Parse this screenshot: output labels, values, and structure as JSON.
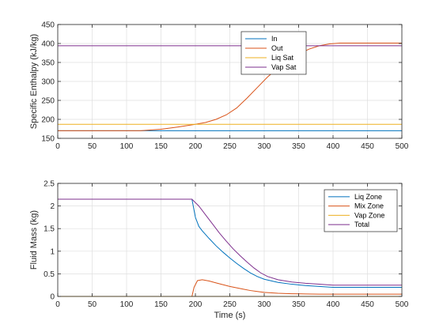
{
  "chart_data": [
    {
      "type": "line",
      "title": "",
      "xlabel": "",
      "ylabel": "Specific Enthalpy (kJ/kg)",
      "xlim": [
        0,
        500
      ],
      "ylim": [
        150,
        450
      ],
      "xticks": [
        0,
        50,
        100,
        150,
        200,
        250,
        300,
        350,
        400,
        450,
        500
      ],
      "yticks": [
        150,
        200,
        250,
        300,
        350,
        400,
        450
      ],
      "grid": true,
      "legend_position": "top-right",
      "series": [
        {
          "name": "In",
          "color": "#0072BD",
          "x": [
            0,
            500
          ],
          "y": [
            170,
            170
          ]
        },
        {
          "name": "Out",
          "color": "#D95319",
          "x": [
            0,
            120,
            150,
            175,
            200,
            215,
            230,
            245,
            260,
            275,
            290,
            305,
            320,
            335,
            350,
            365,
            380,
            395,
            410,
            430,
            500
          ],
          "y": [
            170,
            170,
            174,
            180,
            187,
            192,
            200,
            212,
            230,
            256,
            284,
            312,
            335,
            355,
            372,
            385,
            394,
            399,
            401,
            401,
            401
          ]
        },
        {
          "name": "Liq Sat",
          "color": "#EDB120",
          "x": [
            0,
            500
          ],
          "y": [
            187,
            187
          ]
        },
        {
          "name": "Vap Sat",
          "color": "#7E2F8E",
          "x": [
            0,
            500
          ],
          "y": [
            394,
            394
          ]
        }
      ]
    },
    {
      "type": "line",
      "title": "",
      "xlabel": "Time (s)",
      "ylabel": "Fluid Mass (kg)",
      "xlim": [
        0,
        500
      ],
      "ylim": [
        0,
        2.5
      ],
      "xticks": [
        0,
        50,
        100,
        150,
        200,
        250,
        300,
        350,
        400,
        450,
        500
      ],
      "yticks": [
        0,
        0.5,
        1,
        1.5,
        2,
        2.5
      ],
      "grid": true,
      "legend_position": "top-right",
      "series": [
        {
          "name": "Liq Zone",
          "color": "#0072BD",
          "x": [
            0,
            195,
            200,
            205,
            210,
            220,
            230,
            240,
            250,
            260,
            270,
            280,
            290,
            300,
            320,
            340,
            360,
            380,
            400,
            450,
            500
          ],
          "y": [
            2.15,
            2.15,
            1.75,
            1.55,
            1.45,
            1.28,
            1.12,
            0.98,
            0.85,
            0.73,
            0.62,
            0.52,
            0.44,
            0.38,
            0.31,
            0.27,
            0.24,
            0.22,
            0.2,
            0.2,
            0.2
          ]
        },
        {
          "name": "Mix Zone",
          "color": "#D95319",
          "x": [
            0,
            195,
            198,
            203,
            210,
            220,
            230,
            240,
            250,
            260,
            270,
            280,
            290,
            300,
            320,
            340,
            360,
            380,
            400,
            500
          ],
          "y": [
            0,
            0,
            0.2,
            0.35,
            0.37,
            0.34,
            0.3,
            0.26,
            0.22,
            0.19,
            0.16,
            0.13,
            0.11,
            0.09,
            0.07,
            0.06,
            0.055,
            0.05,
            0.05,
            0.05
          ]
        },
        {
          "name": "Vap Zone",
          "color": "#EDB120",
          "x": [
            0,
            500
          ],
          "y": [
            0,
            0
          ]
        },
        {
          "name": "Total",
          "color": "#7E2F8E",
          "x": [
            0,
            195,
            205,
            215,
            225,
            235,
            245,
            255,
            265,
            275,
            285,
            295,
            305,
            320,
            340,
            360,
            380,
            400,
            450,
            500
          ],
          "y": [
            2.15,
            2.15,
            2.0,
            1.8,
            1.6,
            1.4,
            1.22,
            1.05,
            0.9,
            0.76,
            0.63,
            0.52,
            0.44,
            0.37,
            0.32,
            0.29,
            0.27,
            0.25,
            0.25,
            0.25
          ]
        }
      ]
    }
  ]
}
